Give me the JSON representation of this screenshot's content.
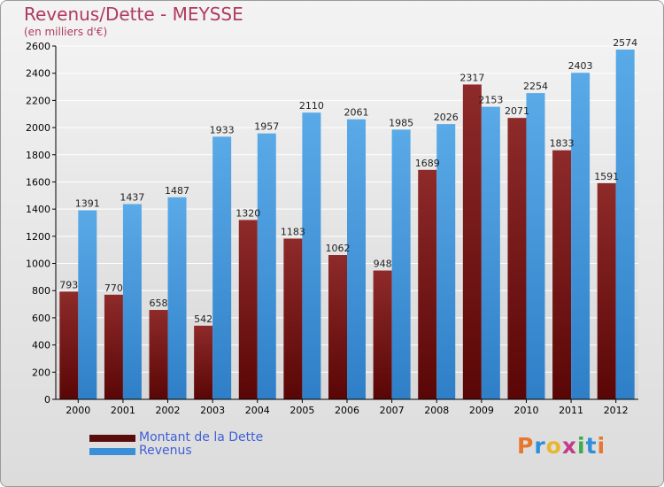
{
  "header": {
    "title": "Revenus/Dette - MEYSSE",
    "subtitle": "(en milliers d'€)"
  },
  "brand": {
    "text": "Proxiti",
    "letter_colors": [
      "#e8772e",
      "#2f8fd8",
      "#e8b52e",
      "#c43a8a",
      "#3cab4a",
      "#2f8fd8",
      "#e8772e"
    ]
  },
  "colors": {
    "debt_bar": "#7a1818",
    "revenue_bar": "#4a9ee0",
    "axis": "#000000",
    "grid": "#ffffff"
  },
  "chart_data": {
    "type": "bar",
    "title": "Revenus/Dette - MEYSSE",
    "subtitle": "(en milliers d'€)",
    "categories": [
      "2000",
      "2001",
      "2002",
      "2003",
      "2004",
      "2005",
      "2006",
      "2007",
      "2008",
      "2009",
      "2010",
      "2011",
      "2012"
    ],
    "series": [
      {
        "name": "Montant de la Dette",
        "values": [
          793,
          770,
          658,
          542,
          1320,
          1183,
          1062,
          948,
          1689,
          2317,
          2071,
          1833,
          1591
        ],
        "labels": [
          "793",
          "770",
          "658",
          "542",
          "1320",
          "1183",
          "1062",
          "948",
          "1689",
          "2317",
          "2071",
          "1833",
          "1591"
        ]
      },
      {
        "name": "Revenus",
        "values": [
          1391,
          1437,
          1487,
          1933,
          1957,
          2110,
          2061,
          1985,
          2026,
          2153,
          2254,
          2403,
          2574
        ],
        "labels": [
          "1391",
          "1437",
          "1487",
          "1933",
          "1957",
          "2110",
          "2061",
          "1985",
          "2026",
          "2153",
          "2254",
          "2403",
          "2574"
        ]
      }
    ],
    "ylim": [
      0,
      2600
    ],
    "yticks": [
      "0",
      "200",
      "400",
      "600",
      "800",
      "1000",
      "1200",
      "1400",
      "1600",
      "1800",
      "2000",
      "2200",
      "2400",
      "2600"
    ],
    "grid": true,
    "legend_position": "bottom-left"
  }
}
